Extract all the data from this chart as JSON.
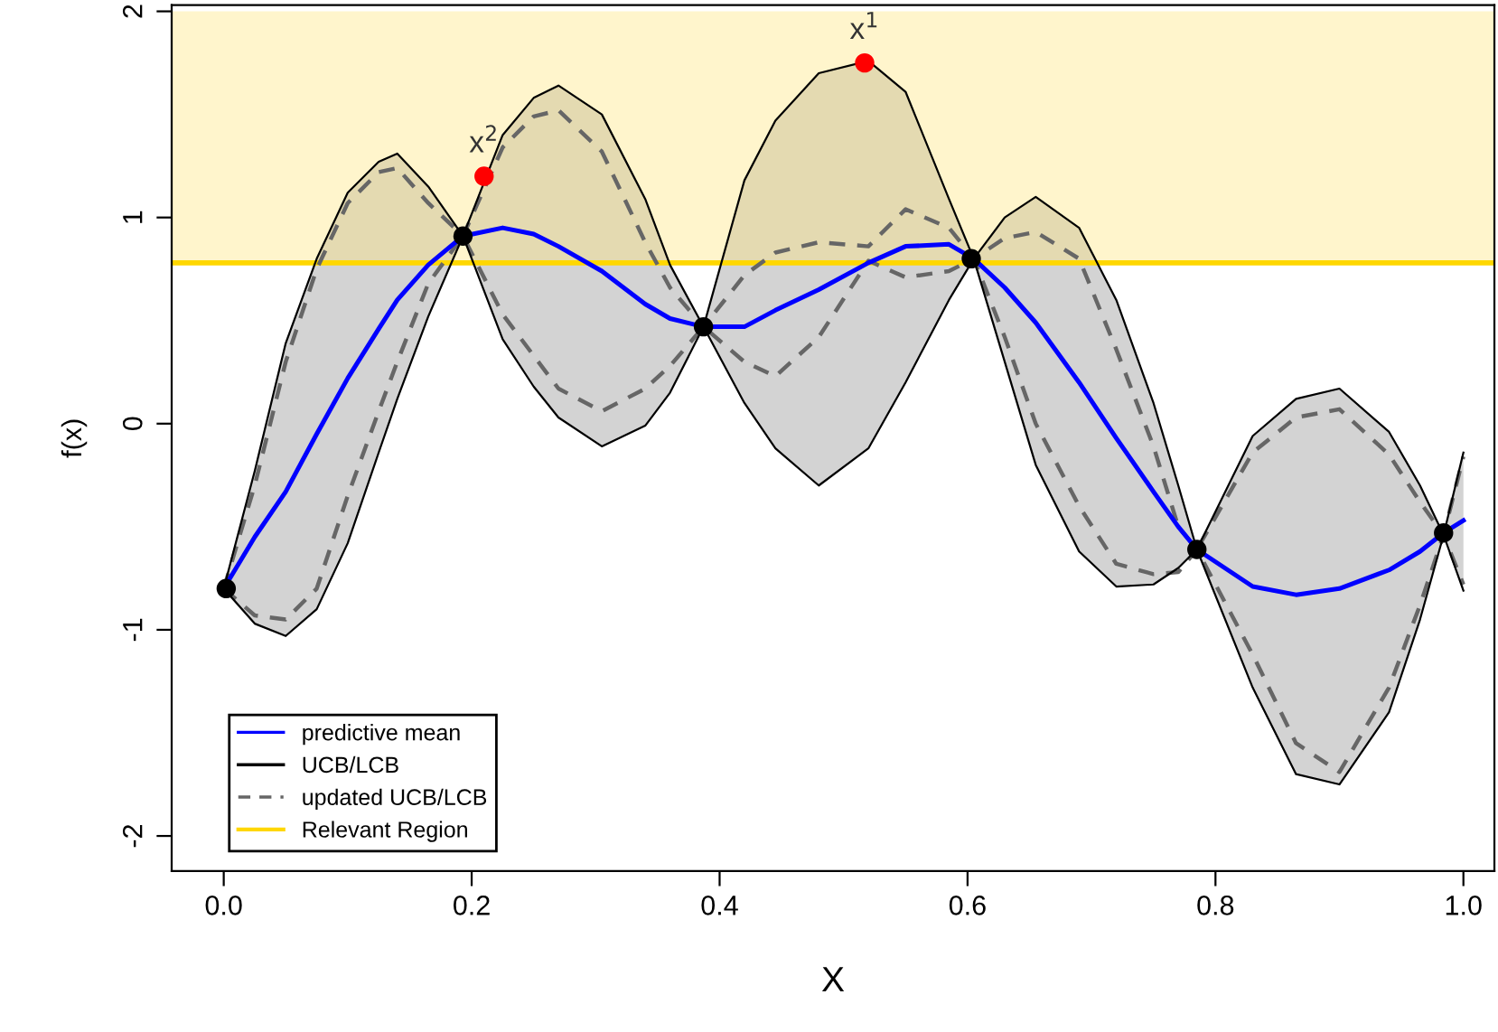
{
  "chart_data": {
    "type": "line",
    "xlabel": "X",
    "ylabel": "f(x)",
    "x": [
      0,
      0.025,
      0.05,
      0.075,
      0.1,
      0.125,
      0.14,
      0.165,
      0.193,
      0.225,
      0.25,
      0.27,
      0.305,
      0.34,
      0.36,
      0.387,
      0.42,
      0.445,
      0.48,
      0.52,
      0.55,
      0.585,
      0.605,
      0.63,
      0.655,
      0.69,
      0.72,
      0.75,
      0.77,
      0.785,
      0.83,
      0.865,
      0.9,
      0.94,
      0.965,
      0.984,
      1.0
    ],
    "series": [
      {
        "name": "predictive mean",
        "color": "#0000ff",
        "values": [
          -0.8,
          -0.55,
          -0.33,
          -0.05,
          0.22,
          0.46,
          0.6,
          0.77,
          0.91,
          0.95,
          0.92,
          0.86,
          0.74,
          0.58,
          0.51,
          0.47,
          0.47,
          0.55,
          0.65,
          0.78,
          0.86,
          0.87,
          0.8,
          0.66,
          0.49,
          0.2,
          -0.07,
          -0.33,
          -0.5,
          -0.61,
          -0.79,
          -0.83,
          -0.8,
          -0.71,
          -0.62,
          -0.53,
          -0.47
        ],
        "upper": [
          -0.8,
          -0.23,
          0.39,
          0.8,
          1.12,
          1.27,
          1.31,
          1.15,
          0.91,
          1.4,
          1.58,
          1.64,
          1.5,
          1.09,
          0.77,
          0.47,
          1.18,
          1.47,
          1.7,
          1.76,
          1.61,
          1.09,
          0.8,
          1.0,
          1.1,
          0.95,
          0.6,
          0.1,
          -0.3,
          -0.61,
          -0.06,
          0.12,
          0.17,
          -0.04,
          -0.3,
          -0.54,
          -0.14
        ],
        "lower": [
          -0.8,
          -0.97,
          -1.03,
          -0.9,
          -0.58,
          -0.14,
          0.12,
          0.52,
          0.91,
          0.41,
          0.18,
          0.03,
          -0.11,
          -0.01,
          0.15,
          0.47,
          0.1,
          -0.12,
          -0.3,
          -0.12,
          0.2,
          0.6,
          0.8,
          0.3,
          -0.2,
          -0.62,
          -0.79,
          -0.78,
          -0.7,
          -0.61,
          -1.28,
          -1.7,
          -1.75,
          -1.4,
          -0.95,
          -0.54,
          -0.81
        ]
      },
      {
        "name": "UCB/LCB",
        "color": "#000000",
        "values": [
          -0.8,
          -0.23,
          0.39,
          0.8,
          1.12,
          1.27,
          1.31,
          1.15,
          0.91,
          1.4,
          1.58,
          1.64,
          1.5,
          1.09,
          0.77,
          0.47,
          1.18,
          1.47,
          1.7,
          1.76,
          1.61,
          1.09,
          0.8,
          1.0,
          1.1,
          0.95,
          0.6,
          0.1,
          -0.3,
          -0.61,
          -0.06,
          0.12,
          0.17,
          -0.04,
          -0.3,
          -0.54,
          -0.14
        ]
      },
      {
        "color": "#000000",
        "values": [
          -0.8,
          -0.97,
          -1.03,
          -0.9,
          -0.58,
          -0.14,
          0.12,
          0.52,
          0.91,
          0.41,
          0.18,
          0.03,
          -0.11,
          -0.01,
          0.15,
          0.47,
          0.1,
          -0.12,
          -0.3,
          -0.12,
          0.2,
          0.6,
          0.8,
          0.3,
          -0.2,
          -0.62,
          -0.79,
          -0.78,
          -0.7,
          -0.61,
          -1.28,
          -1.7,
          -1.75,
          -1.4,
          -0.95,
          -0.54,
          -0.81
        ]
      },
      {
        "name": "updated UCB/LCB",
        "color": "#666666",
        "line_style": "dashed",
        "values": [
          -0.8,
          -0.3,
          0.3,
          0.75,
          1.07,
          1.22,
          1.24,
          1.07,
          0.91,
          1.34,
          1.49,
          1.52,
          1.32,
          0.88,
          0.66,
          0.47,
          0.72,
          0.83,
          0.88,
          0.86,
          1.04,
          0.95,
          0.8,
          0.9,
          0.93,
          0.8,
          0.36,
          -0.11,
          -0.5,
          -0.61,
          -0.14,
          0.03,
          0.07,
          -0.15,
          -0.38,
          -0.54,
          -0.16
        ]
      },
      {
        "color": "#666666",
        "line_style": "dashed",
        "values": [
          -0.8,
          -0.93,
          -0.95,
          -0.8,
          -0.35,
          0.06,
          0.3,
          0.68,
          0.91,
          0.53,
          0.33,
          0.17,
          0.06,
          0.17,
          0.28,
          0.47,
          0.3,
          0.23,
          0.42,
          0.79,
          0.71,
          0.74,
          0.8,
          0.42,
          0.0,
          -0.4,
          -0.68,
          -0.73,
          -0.72,
          -0.61,
          -1.12,
          -1.55,
          -1.69,
          -1.28,
          -0.88,
          -0.54,
          -0.78
        ]
      },
      {
        "type": "scatter",
        "color": "#000000",
        "marker": "circle",
        "x": [
          0.002,
          0.193,
          0.387,
          0.603,
          0.785,
          0.984
        ],
        "values": [
          -0.8,
          0.91,
          0.47,
          0.8,
          -0.61,
          -0.53
        ]
      },
      {
        "type": "scatter",
        "color": "#ff0000",
        "marker": "circle",
        "x": [
          0.517,
          0.21
        ],
        "values": [
          1.75,
          1.2
        ]
      }
    ],
    "annotations": [
      {
        "text": "x$^{1}$",
        "x": 0.517,
        "y": 1.75
      },
      {
        "text": "x$^{2}$",
        "x": 0.21,
        "y": 1.2
      }
    ],
    "bands": [
      {
        "axis": "y",
        "from": 0.78,
        "to": 2,
        "color": "#ffe680"
      }
    ],
    "ref_lines": [
      {
        "axis": "y",
        "value": 0.78,
        "label": "Relevant Region",
        "color": "#ffd700"
      }
    ],
    "xlim": [
      -0.042,
      1.025
    ],
    "ylim": [
      -2.17,
      2.03
    ],
    "xticks": [
      {
        "value": 0,
        "label": "0.0"
      },
      {
        "value": 0.2,
        "label": "0.2"
      },
      {
        "value": 0.4,
        "label": "0.4"
      },
      {
        "value": 0.6,
        "label": "0.6"
      },
      {
        "value": 0.8,
        "label": "0.8"
      },
      {
        "value": 1,
        "label": "1.0"
      }
    ],
    "yticks": [
      -2,
      -1,
      0,
      1,
      2
    ],
    "legend": "bottom left",
    "grid": false
  }
}
